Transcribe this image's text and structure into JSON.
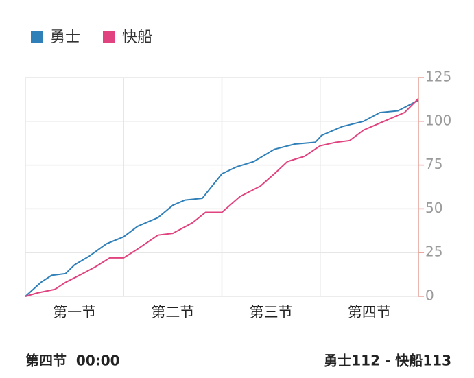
{
  "chart_data": {
    "type": "line",
    "categories": [
      "第一节",
      "第二节",
      "第三节",
      "第四节"
    ],
    "xlim": [
      0,
      48
    ],
    "xticks": [
      0,
      12,
      24,
      36,
      48
    ],
    "ylim": [
      0,
      125
    ],
    "yticks": [
      0,
      25,
      50,
      75,
      100,
      125
    ],
    "grid": true,
    "legend": "top-left",
    "series": [
      {
        "name": "勇士",
        "color": "#2f7fb8",
        "x": [
          0,
          1.9,
          3.2,
          4.9,
          6,
          7.8,
          9.9,
          12,
          13.7,
          16.2,
          18,
          19.5,
          21.6,
          24,
          25.8,
          27.9,
          30.4,
          32.9,
          35.4,
          36.2,
          38.7,
          41.3,
          43.3,
          45.5,
          48
        ],
        "values": [
          0,
          8,
          12,
          13,
          18,
          23,
          30,
          34,
          40,
          45,
          52,
          55,
          56,
          70,
          74,
          77,
          84,
          87,
          88,
          92,
          97,
          100,
          105,
          106,
          112
        ]
      },
      {
        "name": "快船",
        "color": "#e0437f",
        "x": [
          0,
          1.5,
          3.6,
          4.9,
          7,
          8.6,
          10.3,
          12,
          13.7,
          16.2,
          18,
          20.4,
          22,
          24,
          26.2,
          28.7,
          30.4,
          32,
          34.1,
          36,
          37.9,
          39.6,
          41.3,
          43.8,
          46.3,
          48
        ],
        "values": [
          0,
          2,
          4,
          8,
          13,
          17,
          22,
          22,
          27,
          35,
          36,
          42,
          48,
          48,
          57,
          63,
          70,
          77,
          80,
          86,
          88,
          89,
          95,
          100,
          105,
          113
        ]
      }
    ]
  },
  "footer": {
    "period": "第四节  00:00",
    "score": "勇士112 - 快船113"
  }
}
